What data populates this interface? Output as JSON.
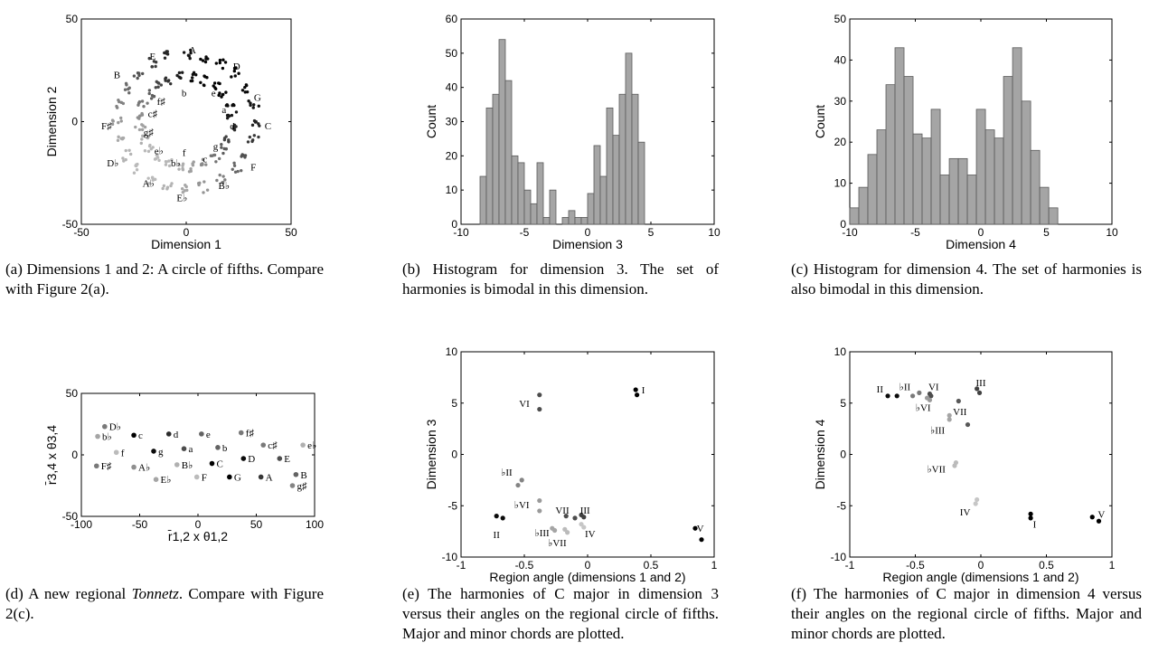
{
  "colors": {
    "axis": "#000000",
    "bar": "#a5a5a5",
    "bar_edge": "#5a5a5a"
  },
  "chart_data": [
    {
      "id": "a",
      "type": "scatter",
      "xlabel": "Dimension 1",
      "ylabel": "Dimension 2",
      "xlim": [
        -50,
        50
      ],
      "ylim": [
        -50,
        50
      ],
      "xticks": [
        "-50",
        "0",
        "50"
      ],
      "yticks": [
        "-50",
        "0",
        "50"
      ],
      "grid": false,
      "caption": "(a) Dimensions 1 and 2: A circle of fifths. Compare with Figure 2(a).",
      "labels": [
        {
          "text": "C",
          "x": 39,
          "y": -2
        },
        {
          "text": "G",
          "x": 34,
          "y": 12
        },
        {
          "text": "D",
          "x": 24,
          "y": 27
        },
        {
          "text": "A",
          "x": 3,
          "y": 35
        },
        {
          "text": "E",
          "x": -16,
          "y": 32
        },
        {
          "text": "B",
          "x": -33,
          "y": 23
        },
        {
          "text": "F♯",
          "x": -38,
          "y": -2
        },
        {
          "text": "D♭",
          "x": -35,
          "y": -20
        },
        {
          "text": "A♭",
          "x": -18,
          "y": -30
        },
        {
          "text": "E♭",
          "x": -2,
          "y": -37
        },
        {
          "text": "B♭",
          "x": 18,
          "y": -31
        },
        {
          "text": "F",
          "x": 32,
          "y": -22
        },
        {
          "text": "a",
          "x": 18,
          "y": 6
        },
        {
          "text": "e",
          "x": 13,
          "y": 14
        },
        {
          "text": "b",
          "x": -1,
          "y": 14
        },
        {
          "text": "f♯",
          "x": -12,
          "y": 10
        },
        {
          "text": "c♯",
          "x": -16,
          "y": 4
        },
        {
          "text": "g♯",
          "x": -18,
          "y": -5
        },
        {
          "text": "e♭",
          "x": -13,
          "y": -14
        },
        {
          "text": "b♭",
          "x": -5,
          "y": -20
        },
        {
          "text": "f",
          "x": -1,
          "y": -15
        },
        {
          "text": "c",
          "x": 9,
          "y": -18
        },
        {
          "text": "g",
          "x": 14,
          "y": -12
        },
        {
          "text": "d",
          "x": 22,
          "y": -2
        }
      ]
    },
    {
      "id": "b",
      "type": "bar",
      "xlabel": "Dimension 3",
      "ylabel": "Count",
      "xlim": [
        -10,
        10
      ],
      "ylim": [
        0,
        60
      ],
      "xticks": [
        "-10",
        "-5",
        "0",
        "5",
        "10"
      ],
      "yticks": [
        "0",
        "10",
        "20",
        "30",
        "40",
        "50",
        "60"
      ],
      "bin_start": -8.5,
      "bin_width": 0.5,
      "values": [
        14,
        34,
        38,
        54,
        42,
        20,
        18,
        10,
        6,
        18,
        2,
        10,
        0,
        2,
        4,
        2,
        2,
        9,
        23,
        14,
        34,
        26,
        38,
        50,
        38,
        24
      ],
      "caption": "(b) Histogram for dimension 3. The set of harmonies is bimodal in this dimension."
    },
    {
      "id": "c",
      "type": "bar",
      "xlabel": "Dimension 4",
      "ylabel": "Count",
      "xlim": [
        -10,
        10
      ],
      "ylim": [
        0,
        50
      ],
      "xticks": [
        "-10",
        "-5",
        "0",
        "5",
        "10"
      ],
      "yticks": [
        "0",
        "10",
        "20",
        "30",
        "40",
        "50"
      ],
      "bin_start": -10,
      "bin_width": 0.69,
      "values": [
        4,
        9,
        17,
        23,
        34,
        43,
        36,
        22,
        21,
        28,
        12,
        16,
        16,
        12,
        28,
        23,
        21,
        36,
        43,
        30,
        18,
        9,
        4
      ],
      "caption": "(c) Histogram for dimension 4. The set of harmonies is also bimodal in this dimension."
    },
    {
      "id": "d",
      "type": "scatter",
      "xlabel": "r̄1,2 x θ1,2",
      "ylabel": "r̄3,4 x θ3,4",
      "xlim": [
        -100,
        100
      ],
      "ylim": [
        -50,
        50
      ],
      "xticks": [
        "-100",
        "-50",
        "0",
        "50",
        "100"
      ],
      "yticks": [
        "-50",
        "0",
        "50"
      ],
      "grid": false,
      "caption": "(d) A new regional Tonnetz. Compare with Figure 2(c).",
      "points": [
        {
          "label": "D♭",
          "x": -80,
          "y": 23,
          "g": 0.55
        },
        {
          "label": "b♭",
          "x": -86,
          "y": 15,
          "g": 0.75
        },
        {
          "label": "F♯",
          "x": -87,
          "y": -9,
          "g": 0.55
        },
        {
          "label": "f",
          "x": -70,
          "y": 2,
          "g": 0.85
        },
        {
          "label": "c",
          "x": -55,
          "y": 16,
          "g": 0.0
        },
        {
          "label": "A♭",
          "x": -55,
          "y": -10,
          "g": 0.65
        },
        {
          "label": "g",
          "x": -38,
          "y": 3,
          "g": 0.05
        },
        {
          "label": "E♭",
          "x": -36,
          "y": -20,
          "g": 0.75
        },
        {
          "label": "d",
          "x": -25,
          "y": 17,
          "g": 0.2
        },
        {
          "label": "a",
          "x": -12,
          "y": 5,
          "g": 0.35
        },
        {
          "label": "B♭",
          "x": -18,
          "y": -8,
          "g": 0.8
        },
        {
          "label": "e",
          "x": 3,
          "y": 17,
          "g": 0.45
        },
        {
          "label": "F",
          "x": -1,
          "y": -18,
          "g": 0.85
        },
        {
          "label": "C",
          "x": 12,
          "y": -7,
          "g": 0.0
        },
        {
          "label": "b",
          "x": 17,
          "y": 6,
          "g": 0.45
        },
        {
          "label": "f♯",
          "x": 37,
          "y": 18,
          "g": 0.55
        },
        {
          "label": "D",
          "x": 39,
          "y": -3,
          "g": 0.05
        },
        {
          "label": "G",
          "x": 27,
          "y": -18,
          "g": 0.0
        },
        {
          "label": "c♯",
          "x": 56,
          "y": 8,
          "g": 0.55
        },
        {
          "label": "A",
          "x": 54,
          "y": -18,
          "g": 0.25
        },
        {
          "label": "E",
          "x": 70,
          "y": -3,
          "g": 0.35
        },
        {
          "label": "e♭",
          "x": 90,
          "y": 8,
          "g": 0.8
        },
        {
          "label": "B",
          "x": 84,
          "y": -16,
          "g": 0.45
        },
        {
          "label": "g♯",
          "x": 81,
          "y": -25,
          "g": 0.6
        }
      ]
    },
    {
      "id": "e",
      "type": "scatter",
      "xlabel": "Region angle (dimensions 1 and 2)",
      "ylabel": "Dimension 3",
      "xlim": [
        -1,
        1
      ],
      "ylim": [
        -10,
        10
      ],
      "xticks": [
        "-1",
        "-0.5",
        "0",
        "0.5",
        "1"
      ],
      "yticks": [
        "-10",
        "-5",
        "0",
        "5",
        "10"
      ],
      "grid": false,
      "caption": "(e) The harmonies of C major in dimension 3 versus their angles on the regional circle of fifths. Major and minor chords are plotted.",
      "points": [
        {
          "x": 0.38,
          "y": 6.3,
          "g": 0.0
        },
        {
          "x": 0.39,
          "y": 5.8,
          "g": 0.0
        },
        {
          "x": -0.38,
          "y": 5.8,
          "g": 0.35
        },
        {
          "x": -0.38,
          "y": 4.4,
          "g": 0.35
        },
        {
          "x": -0.52,
          "y": -2.5,
          "g": 0.6
        },
        {
          "x": -0.55,
          "y": -3.0,
          "g": 0.6
        },
        {
          "x": -0.72,
          "y": -6.0,
          "g": 0.05
        },
        {
          "x": -0.67,
          "y": -6.2,
          "g": 0.05
        },
        {
          "x": -0.38,
          "y": -4.5,
          "g": 0.7
        },
        {
          "x": -0.38,
          "y": -5.5,
          "g": 0.7
        },
        {
          "x": -0.28,
          "y": -7.2,
          "g": 0.75
        },
        {
          "x": -0.26,
          "y": -7.4,
          "g": 0.75
        },
        {
          "x": -0.18,
          "y": -7.3,
          "g": 0.85
        },
        {
          "x": -0.16,
          "y": -7.6,
          "g": 0.85
        },
        {
          "x": -0.17,
          "y": -6.0,
          "g": 0.35
        },
        {
          "x": -0.1,
          "y": -6.2,
          "g": 0.35
        },
        {
          "x": -0.05,
          "y": -5.9,
          "g": 0.3
        },
        {
          "x": -0.03,
          "y": -6.1,
          "g": 0.3
        },
        {
          "x": -0.05,
          "y": -6.8,
          "g": 0.9
        },
        {
          "x": -0.03,
          "y": -7.1,
          "g": 0.9
        },
        {
          "x": 0.85,
          "y": -7.2,
          "g": 0.0
        },
        {
          "x": 0.9,
          "y": -8.3,
          "g": 0.0
        }
      ],
      "labels": [
        {
          "text": "I",
          "x": 0.44,
          "y": 6.3
        },
        {
          "text": "VI",
          "x": -0.5,
          "y": 5.0
        },
        {
          "text": "♭II",
          "x": -0.64,
          "y": -1.7
        },
        {
          "text": "♭VI",
          "x": -0.52,
          "y": -4.9
        },
        {
          "text": "II",
          "x": -0.72,
          "y": -7.8
        },
        {
          "text": "♭III",
          "x": -0.36,
          "y": -7.6
        },
        {
          "text": "♭VII",
          "x": -0.24,
          "y": -8.6
        },
        {
          "text": "VII",
          "x": -0.2,
          "y": -5.4
        },
        {
          "text": "III",
          "x": -0.02,
          "y": -5.4
        },
        {
          "text": "IV",
          "x": 0.02,
          "y": -7.7
        },
        {
          "text": "V",
          "x": 0.89,
          "y": -7.2
        }
      ]
    },
    {
      "id": "f",
      "type": "scatter",
      "xlabel": "Region angle (dimensions 1 and 2)",
      "ylabel": "Dimension 4",
      "xlim": [
        -1,
        1
      ],
      "ylim": [
        -10,
        10
      ],
      "xticks": [
        "-1",
        "-0.5",
        "0",
        "0.5",
        "1"
      ],
      "yticks": [
        "-10",
        "-5",
        "0",
        "5",
        "10"
      ],
      "grid": false,
      "caption": "(f) The harmonies of C major in dimension 4 versus their angles on the regional circle of fifths. Major and minor chords are plotted.",
      "points": [
        {
          "x": -0.71,
          "y": 5.7,
          "g": 0.05
        },
        {
          "x": -0.64,
          "y": 5.7,
          "g": 0.05
        },
        {
          "x": -0.52,
          "y": 5.7,
          "g": 0.55
        },
        {
          "x": -0.47,
          "y": 6.0,
          "g": 0.55
        },
        {
          "x": -0.39,
          "y": 5.9,
          "g": 0.35
        },
        {
          "x": -0.38,
          "y": 5.7,
          "g": 0.35
        },
        {
          "x": -0.41,
          "y": 5.5,
          "g": 0.7
        },
        {
          "x": -0.39,
          "y": 5.3,
          "g": 0.7
        },
        {
          "x": -0.03,
          "y": 6.4,
          "g": 0.3
        },
        {
          "x": -0.01,
          "y": 6.0,
          "g": 0.3
        },
        {
          "x": -0.17,
          "y": 5.2,
          "g": 0.4
        },
        {
          "x": -0.1,
          "y": 2.9,
          "g": 0.4
        },
        {
          "x": -0.24,
          "y": 3.8,
          "g": 0.75
        },
        {
          "x": -0.24,
          "y": 3.4,
          "g": 0.75
        },
        {
          "x": -0.19,
          "y": -0.8,
          "g": 0.85
        },
        {
          "x": -0.2,
          "y": -1.1,
          "g": 0.85
        },
        {
          "x": -0.03,
          "y": -4.4,
          "g": 0.9
        },
        {
          "x": -0.04,
          "y": -4.8,
          "g": 0.9
        },
        {
          "x": 0.38,
          "y": -5.8,
          "g": 0.0
        },
        {
          "x": 0.38,
          "y": -6.2,
          "g": 0.0
        },
        {
          "x": 0.85,
          "y": -6.1,
          "g": 0.0
        },
        {
          "x": 0.9,
          "y": -6.5,
          "g": 0.0
        }
      ],
      "labels": [
        {
          "text": "II",
          "x": -0.77,
          "y": 6.4
        },
        {
          "text": "♭II",
          "x": -0.58,
          "y": 6.6
        },
        {
          "text": "VI",
          "x": -0.36,
          "y": 6.6
        },
        {
          "text": "III",
          "x": 0.0,
          "y": 7.0
        },
        {
          "text": "♭VI",
          "x": -0.44,
          "y": 4.6
        },
        {
          "text": "VII",
          "x": -0.16,
          "y": 4.2
        },
        {
          "text": "♭III",
          "x": -0.33,
          "y": 2.4
        },
        {
          "text": "♭VII",
          "x": -0.34,
          "y": -1.4
        },
        {
          "text": "IV",
          "x": -0.12,
          "y": -5.6
        },
        {
          "text": "I",
          "x": 0.41,
          "y": -6.8
        },
        {
          "text": "V",
          "x": 0.92,
          "y": -5.8
        }
      ]
    }
  ]
}
